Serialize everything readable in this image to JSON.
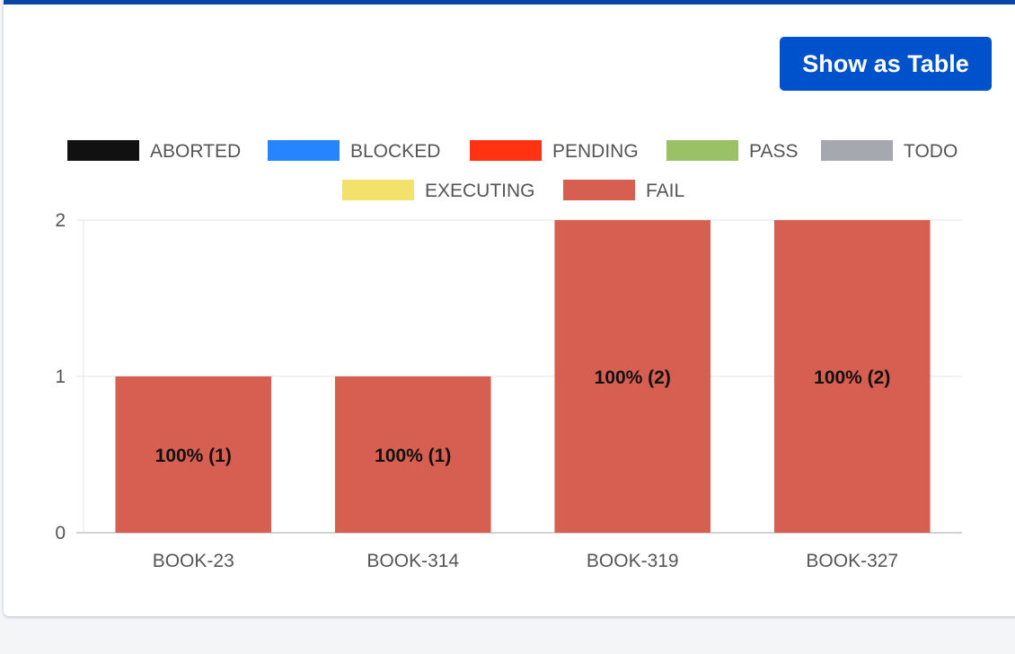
{
  "toolbar": {
    "show_table_label": "Show as Table"
  },
  "colors": {
    "accent": "#0052cc",
    "header_bar": "#0747a6"
  },
  "chart_data": {
    "type": "bar",
    "stacked": true,
    "categories": [
      "BOOK-23",
      "BOOK-314",
      "BOOK-319",
      "BOOK-327"
    ],
    "series": [
      {
        "name": "ABORTED",
        "color": "#111111",
        "values": [
          0,
          0,
          0,
          0
        ],
        "labels": [
          "",
          "",
          "",
          ""
        ]
      },
      {
        "name": "BLOCKED",
        "color": "#2684ff",
        "values": [
          0,
          0,
          0,
          0
        ],
        "labels": [
          "",
          "",
          "",
          ""
        ]
      },
      {
        "name": "PENDING",
        "color": "#ff3311",
        "values": [
          0,
          0,
          0,
          0
        ],
        "labels": [
          "",
          "",
          "",
          ""
        ]
      },
      {
        "name": "PASS",
        "color": "#9ac166",
        "values": [
          0,
          0,
          0,
          0
        ],
        "labels": [
          "",
          "",
          "",
          ""
        ]
      },
      {
        "name": "TODO",
        "color": "#a5a8ae",
        "values": [
          0,
          0,
          0,
          0
        ],
        "labels": [
          "",
          "",
          "",
          ""
        ]
      },
      {
        "name": "EXECUTING",
        "color": "#f2e16b",
        "values": [
          0,
          0,
          0,
          0
        ],
        "labels": [
          "",
          "",
          "",
          ""
        ]
      },
      {
        "name": "FAIL",
        "color": "#d65f51",
        "values": [
          1,
          1,
          2,
          2
        ],
        "labels": [
          "100% (1)",
          "100% (1)",
          "100% (2)",
          "100% (2)"
        ]
      }
    ],
    "yticks": [
      0,
      1,
      2
    ],
    "ylim": [
      0,
      2
    ],
    "grid": true,
    "legend_position": "top"
  }
}
